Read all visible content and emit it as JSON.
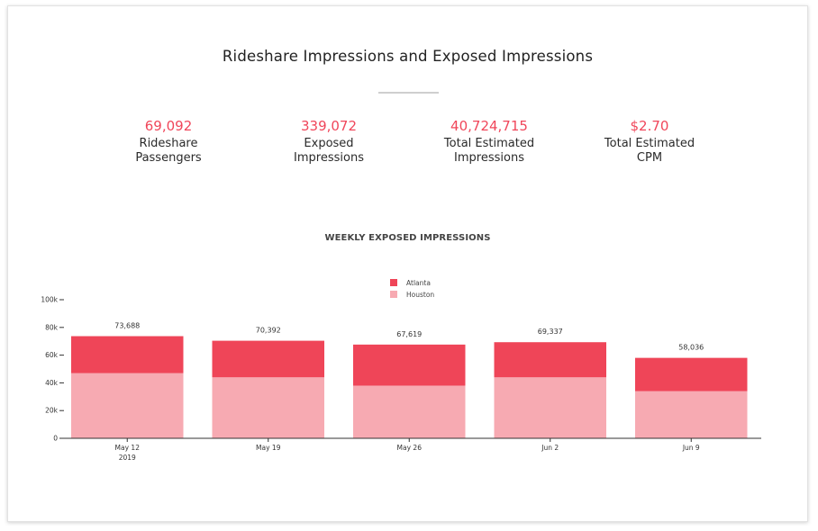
{
  "header": {
    "title": "Rideshare Impressions and Exposed Impressions"
  },
  "kpis": [
    {
      "value": "69,092",
      "label_line1": "Rideshare",
      "label_line2": "Passengers"
    },
    {
      "value": "339,072",
      "label_line1": "Exposed",
      "label_line2": "Impressions"
    },
    {
      "value": "40,724,715",
      "label_line1": "Total Estimated",
      "label_line2": "Impressions"
    },
    {
      "value": "$2.70",
      "label_line1": "Total Estimated",
      "label_line2": "CPM"
    }
  ],
  "colors": {
    "accent": "#f0465a",
    "atlanta": "#ef4558",
    "houston": "#f7aab2",
    "axis": "#333333"
  },
  "chart_data": {
    "type": "bar",
    "stacked": true,
    "title": "WEEKLY EXPOSED IMPRESSIONS",
    "categories": [
      "May 12",
      "May 19",
      "May 26",
      "Jun 2",
      "Jun 9"
    ],
    "category_sublabels": [
      "2019",
      "",
      "",
      "",
      ""
    ],
    "series": [
      {
        "name": "Atlanta",
        "values": [
          26688,
          26392,
          29619,
          25337,
          24036
        ]
      },
      {
        "name": "Houston",
        "values": [
          47000,
          44000,
          38000,
          44000,
          34000
        ]
      }
    ],
    "totals": [
      "73,688",
      "70,392",
      "67,619",
      "69,337",
      "58,036"
    ],
    "ylim": [
      0,
      100000
    ],
    "yticks": [
      0,
      20000,
      40000,
      60000,
      80000,
      100000
    ],
    "ytick_labels": [
      "0",
      "20k",
      "40k",
      "60k",
      "80k",
      "100k"
    ],
    "legend_position": "top-center",
    "grid": false
  }
}
